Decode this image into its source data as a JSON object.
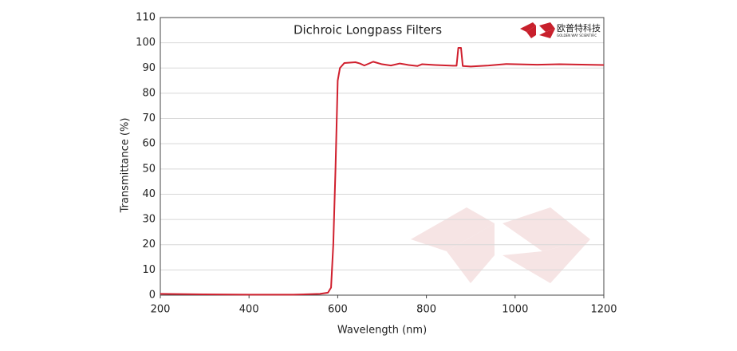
{
  "chart_data": {
    "type": "line",
    "title": "Dichroic Longpass Filters",
    "x_label": "Wavelength (nm)",
    "y_label": "Transmittance (%)",
    "logo": {
      "name": "欧普特科技",
      "tagline": "GOLDEN WAY SCIENTIFIC"
    },
    "x": [
      200,
      300,
      400,
      500,
      560,
      578,
      585,
      590,
      595,
      600,
      605,
      615,
      640,
      650,
      660,
      680,
      700,
      720,
      740,
      760,
      780,
      790,
      820,
      860,
      868,
      872,
      878,
      882,
      900,
      940,
      980,
      1050,
      1100,
      1200
    ],
    "series": [
      {
        "name": "Transmittance",
        "color": "#d0202e",
        "values": [
          0.5,
          0.3,
          0.2,
          0.2,
          0.5,
          1,
          3,
          20,
          50,
          85,
          90,
          92,
          92.3,
          91.8,
          91,
          92.5,
          91.5,
          91,
          91.8,
          91.2,
          90.8,
          91.5,
          91.2,
          90.9,
          90.9,
          98,
          98,
          90.8,
          90.6,
          91,
          91.6,
          91.3,
          91.5,
          91.2
        ]
      }
    ],
    "xlim": [
      200,
      1200
    ],
    "xticks": [
      200,
      400,
      600,
      800,
      1000,
      1200
    ],
    "ylim": [
      0,
      110
    ],
    "yticks": [
      0,
      10,
      20,
      30,
      40,
      50,
      60,
      70,
      80,
      90,
      100,
      110
    ],
    "grid": true
  }
}
